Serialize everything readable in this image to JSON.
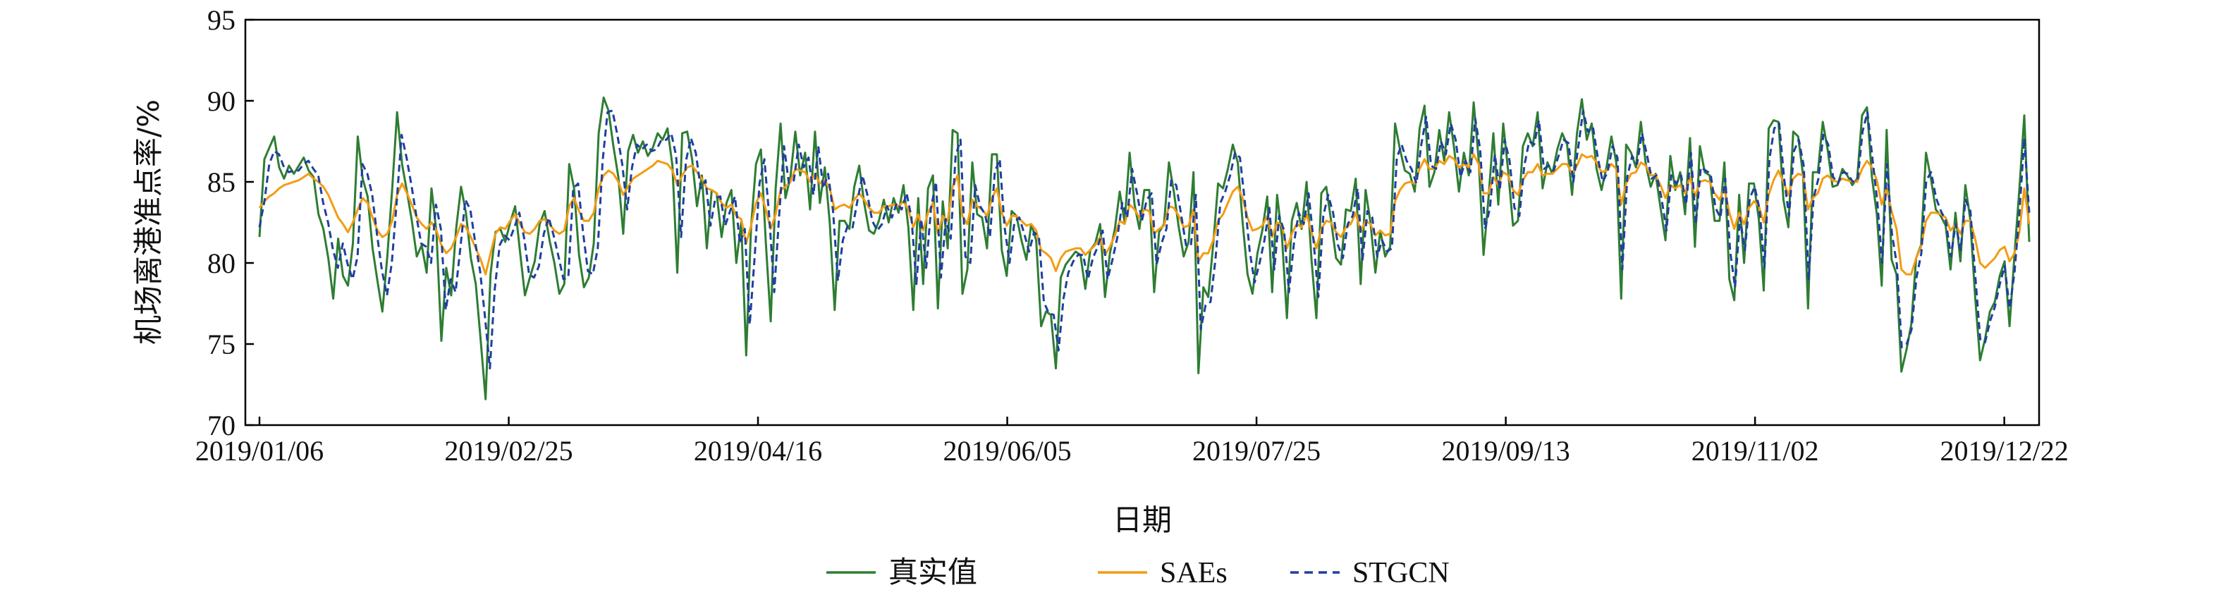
{
  "chart_data": {
    "type": "line",
    "title": "",
    "xlabel": "日期",
    "ylabel": "机场离港准点率/%",
    "ylim": [
      70,
      95
    ],
    "yticks": [
      70,
      75,
      80,
      85,
      90,
      95
    ],
    "x_start": "2019/01/06",
    "x_end": "2019/12/27",
    "xticks": [
      "2019/01/06",
      "2019/02/25",
      "2019/04/16",
      "2019/06/05",
      "2019/07/25",
      "2019/09/13",
      "2019/11/02",
      "2019/12/22"
    ],
    "grid": false,
    "legend_position": "bottom",
    "series": [
      {
        "name": "真实值",
        "color": "#2e7d32",
        "style": "solid",
        "values": [
          81.6,
          86.4,
          87.1,
          87.8,
          85.9,
          85.2,
          86.0,
          85.5,
          86.0,
          86.5,
          85.7,
          85.3,
          83.0,
          82.1,
          80.3,
          77.8,
          81.5,
          79.2,
          78.6,
          81.2,
          87.8,
          85.2,
          84.1,
          80.9,
          78.9,
          77.0,
          80.4,
          84.6,
          89.3,
          86.1,
          84.4,
          82.6,
          80.4,
          81.1,
          79.4,
          84.6,
          81.9,
          75.2,
          79.7,
          78.0,
          82.1,
          84.7,
          83.1,
          80.3,
          78.7,
          75.2,
          71.6,
          79.3,
          81.9,
          82.1,
          81.3,
          82.5,
          83.5,
          80.7,
          78.0,
          79.1,
          80.1,
          82.4,
          83.2,
          81.4,
          80.0,
          78.1,
          78.7,
          86.1,
          84.6,
          80.5,
          78.5,
          79.1,
          81.2,
          88.0,
          90.2,
          89.4,
          87.2,
          85.3,
          81.8,
          86.9,
          87.9,
          86.8,
          87.5,
          86.6,
          87.1,
          88.0,
          87.6,
          88.3,
          86.0,
          79.4,
          88.0,
          88.1,
          86.4,
          83.5,
          85.4,
          80.9,
          84.5,
          84.3,
          81.6,
          83.7,
          84.5,
          80.0,
          82.5,
          74.3,
          82.2,
          86.1,
          87.0,
          81.3,
          76.4,
          84.6,
          88.6,
          84.0,
          85.3,
          88.1,
          85.4,
          86.8,
          83.3,
          88.1,
          83.7,
          85.9,
          82.5,
          77.1,
          82.6,
          82.6,
          82.1,
          84.7,
          86.0,
          83.7,
          82.0,
          81.8,
          82.6,
          83.9,
          82.5,
          84.0,
          83.1,
          84.8,
          82.2,
          77.1,
          84.0,
          78.7,
          84.6,
          85.4,
          77.2,
          83.8,
          80.9,
          88.2,
          88.0,
          78.1,
          79.6,
          86.2,
          83.0,
          82.8,
          80.9,
          86.7,
          86.7,
          80.8,
          79.2,
          83.2,
          82.9,
          81.4,
          80.2,
          82.4,
          81.4,
          76.1,
          77.0,
          76.8,
          73.5,
          79.1,
          79.9,
          80.3,
          80.7,
          80.5,
          78.4,
          80.8,
          81.2,
          82.4,
          77.9,
          80.6,
          82.1,
          84.4,
          82.5,
          86.8,
          83.6,
          82.1,
          84.5,
          84.5,
          78.2,
          81.9,
          82.4,
          86.2,
          84.4,
          82.2,
          80.4,
          81.3,
          85.6,
          73.2,
          78.5,
          77.9,
          81.1,
          84.9,
          84.6,
          85.8,
          87.3,
          86.2,
          82.5,
          79.3,
          78.1,
          80.6,
          82.0,
          84.1,
          78.2,
          84.2,
          81.6,
          76.6,
          82.6,
          83.7,
          82.1,
          85.0,
          80.2,
          76.6,
          84.3,
          84.7,
          82.6,
          80.3,
          79.9,
          83.3,
          83.2,
          85.2,
          78.7,
          84.5,
          82.5,
          79.4,
          82.0,
          80.4,
          81.0,
          88.6,
          87.0,
          85.7,
          85.5,
          84.4,
          88.3,
          89.7,
          84.7,
          85.6,
          88.2,
          86.3,
          89.3,
          87.1,
          84.4,
          86.8,
          85.4,
          89.9,
          86.4,
          80.5,
          84.0,
          88.0,
          83.6,
          88.6,
          85.7,
          82.3,
          82.6,
          87.2,
          88.0,
          87.2,
          89.3,
          84.6,
          86.2,
          85.5,
          87.0,
          88.0,
          87.3,
          84.2,
          88.0,
          90.1,
          87.6,
          88.6,
          85.8,
          84.5,
          85.9,
          87.8,
          86.2,
          77.8,
          87.3,
          86.8,
          85.9,
          88.7,
          86.1,
          84.7,
          85.5,
          83.4,
          81.4,
          86.6,
          84.5,
          85.6,
          83.0,
          87.7,
          81.0,
          87.2,
          85.6,
          85.4,
          82.6,
          82.6,
          86.2,
          79.0,
          77.7,
          84.2,
          80.0,
          84.9,
          84.9,
          82.7,
          78.3,
          88.3,
          88.8,
          88.7,
          83.9,
          82.2,
          88.1,
          87.8,
          85.4,
          77.2,
          85.6,
          85.6,
          88.7,
          87.0,
          84.7,
          84.8,
          85.8,
          85.4,
          84.8,
          85.2,
          89.1,
          89.6,
          85.3,
          83.0,
          78.6,
          88.2,
          80.2,
          79.3,
          73.3,
          74.6,
          76.2,
          80.3,
          81.1,
          86.8,
          85.2,
          83.3,
          82.9,
          82.3,
          79.6,
          83.1,
          80.1,
          84.8,
          82.7,
          77.9,
          74.0,
          75.3,
          77.0,
          77.6,
          79.2,
          80.1,
          76.1,
          80.5,
          84.6,
          89.1,
          81.3
        ]
      },
      {
        "name": "SAEs",
        "color": "#f39c12",
        "style": "solid",
        "values": [
          83.4,
          83.8,
          84.1,
          84.3,
          84.6,
          84.8,
          84.9,
          85.0,
          85.1,
          85.3,
          85.5,
          85.2,
          85.0,
          84.7,
          84.2,
          83.5,
          82.8,
          82.4,
          81.9,
          82.5,
          83.3,
          84.0,
          83.7,
          82.8,
          82.0,
          81.6,
          81.8,
          82.6,
          84.2,
          84.9,
          84.3,
          83.6,
          82.8,
          82.4,
          82.1,
          82.5,
          82.0,
          81.1,
          80.6,
          80.9,
          81.6,
          82.4,
          82.2,
          81.6,
          80.9,
          80.2,
          79.3,
          80.6,
          81.8,
          82.2,
          82.1,
          82.6,
          83.0,
          82.4,
          81.9,
          81.8,
          82.1,
          82.6,
          82.7,
          82.4,
          82.0,
          81.8,
          82.0,
          83.5,
          84.0,
          83.2,
          82.6,
          82.6,
          83.1,
          84.6,
          85.4,
          85.7,
          85.5,
          85.0,
          84.2,
          84.7,
          85.2,
          85.4,
          85.6,
          85.8,
          86.0,
          86.3,
          86.2,
          86.1,
          85.7,
          84.8,
          85.4,
          85.9,
          86.0,
          85.6,
          85.2,
          84.6,
          84.5,
          84.3,
          83.7,
          83.4,
          83.6,
          82.9,
          82.7,
          81.2,
          82.3,
          83.7,
          84.3,
          83.3,
          82.1,
          83.0,
          84.5,
          84.7,
          85.0,
          85.8,
          85.7,
          85.6,
          85.0,
          85.5,
          84.9,
          85.1,
          84.6,
          83.3,
          83.5,
          83.6,
          83.4,
          83.9,
          84.3,
          83.9,
          83.4,
          83.1,
          83.1,
          83.5,
          83.5,
          83.6,
          83.5,
          83.8,
          83.3,
          82.2,
          83.0,
          82.0,
          83.1,
          83.7,
          81.8,
          82.9,
          82.6,
          84.7,
          85.4,
          82.9,
          82.4,
          83.9,
          83.5,
          83.3,
          82.9,
          84.0,
          84.6,
          83.1,
          82.3,
          82.9,
          82.9,
          82.6,
          82.3,
          82.4,
          82.0,
          80.8,
          80.6,
          80.3,
          79.5,
          80.3,
          80.7,
          80.8,
          80.9,
          80.9,
          80.5,
          80.8,
          81.1,
          81.6,
          80.5,
          81.0,
          81.7,
          82.6,
          82.4,
          83.6,
          83.3,
          82.8,
          83.3,
          83.2,
          81.8,
          82.1,
          82.3,
          83.5,
          83.4,
          82.9,
          82.2,
          82.3,
          83.3,
          80.1,
          80.6,
          80.6,
          81.4,
          82.6,
          83.0,
          83.7,
          84.4,
          84.7,
          84.0,
          82.8,
          82.0,
          82.1,
          82.3,
          82.9,
          81.6,
          82.5,
          82.3,
          80.9,
          81.8,
          82.4,
          82.2,
          83.0,
          81.9,
          80.9,
          82.1,
          82.6,
          82.5,
          81.9,
          81.6,
          82.2,
          82.4,
          83.1,
          81.9,
          82.6,
          82.4,
          81.7,
          82.0,
          81.7,
          81.8,
          83.8,
          84.5,
          84.9,
          85.0,
          84.9,
          85.8,
          86.4,
          85.8,
          85.8,
          86.3,
          86.1,
          86.6,
          86.4,
          85.9,
          86.1,
          85.9,
          86.7,
          86.1,
          84.3,
          84.3,
          85.3,
          84.8,
          85.6,
          85.4,
          84.5,
          84.2,
          85.1,
          85.6,
          85.6,
          86.1,
          85.4,
          85.5,
          85.5,
          85.8,
          86.1,
          86.1,
          85.5,
          86.0,
          86.7,
          86.5,
          86.6,
          86.2,
          85.6,
          85.7,
          86.1,
          85.8,
          83.6,
          84.9,
          85.5,
          85.6,
          86.2,
          86.0,
          85.4,
          85.4,
          84.8,
          84.0,
          84.8,
          84.6,
          84.8,
          84.3,
          85.3,
          84.1,
          85.0,
          85.1,
          85.0,
          84.3,
          83.9,
          84.6,
          83.1,
          82.1,
          83.1,
          82.4,
          83.4,
          83.8,
          83.5,
          82.5,
          84.2,
          85.1,
          85.7,
          85.0,
          84.2,
          85.2,
          85.5,
          85.4,
          83.3,
          84.0,
          84.3,
          85.2,
          85.4,
          85.1,
          85.0,
          85.2,
          85.1,
          85.0,
          85.0,
          85.8,
          86.3,
          85.9,
          85.1,
          83.6,
          84.6,
          83.2,
          82.1,
          79.6,
          79.3,
          79.3,
          80.3,
          81.0,
          82.6,
          83.1,
          83.1,
          83.0,
          82.8,
          82.0,
          82.4,
          81.8,
          82.6,
          82.6,
          81.5,
          80.0,
          79.7,
          80.0,
          80.3,
          80.8,
          81.0,
          80.1,
          80.6,
          81.9,
          84.6,
          82.4
        ]
      },
      {
        "name": "STGCN",
        "color": "#1f3f9f",
        "style": "dashed",
        "values": [
          82.2,
          83.8,
          86.1,
          86.9,
          86.7,
          85.9,
          85.6,
          85.7,
          85.7,
          86.1,
          86.3,
          85.8,
          85.4,
          83.7,
          82.5,
          80.8,
          79.7,
          81.2,
          79.9,
          79.0,
          80.4,
          86.1,
          85.5,
          84.2,
          81.7,
          79.5,
          78.0,
          80.0,
          83.8,
          87.9,
          86.5,
          84.8,
          82.9,
          81.2,
          81.0,
          80.0,
          83.6,
          82.1,
          77.1,
          79.0,
          78.2,
          81.0,
          83.9,
          83.3,
          81.3,
          79.5,
          76.7,
          73.5,
          78.4,
          81.1,
          81.7,
          81.4,
          82.2,
          83.1,
          81.5,
          79.3,
          79.1,
          79.8,
          81.8,
          82.8,
          81.7,
          80.4,
          79.0,
          79.1,
          84.6,
          84.9,
          81.9,
          79.5,
          79.3,
          80.9,
          86.3,
          89.3,
          89.4,
          87.9,
          86.1,
          83.3,
          85.9,
          87.3,
          87.0,
          87.3,
          86.9,
          87.0,
          87.6,
          87.6,
          88.0,
          86.6,
          81.6,
          86.3,
          87.7,
          86.8,
          84.6,
          85.1,
          82.3,
          84.0,
          84.1,
          82.3,
          83.2,
          84.1,
          81.2,
          82.1,
          76.2,
          80.3,
          84.9,
          86.4,
          82.8,
          78.2,
          82.9,
          87.2,
          84.9,
          85.1,
          87.3,
          85.9,
          86.5,
          84.2,
          87.2,
          84.6,
          85.5,
          83.2,
          78.9,
          81.4,
          82.3,
          82.2,
          83.9,
          85.4,
          84.2,
          82.6,
          82.0,
          82.4,
          83.5,
          82.8,
          83.7,
          83.3,
          84.3,
          82.8,
          78.7,
          82.7,
          79.7,
          83.4,
          85.0,
          79.1,
          82.7,
          81.5,
          86.6,
          87.6,
          80.4,
          80.0,
          84.8,
          83.5,
          83.0,
          81.6,
          85.6,
          86.4,
          82.2,
          80.0,
          82.5,
          82.8,
          81.8,
          80.7,
          81.9,
          81.6,
          77.6,
          76.9,
          76.8,
          74.6,
          77.8,
          79.4,
          80.1,
          80.5,
          80.5,
          79.0,
          80.3,
          81.0,
          82.0,
          79.0,
          80.2,
          81.6,
          83.7,
          82.8,
          85.8,
          84.3,
          82.6,
          83.9,
          84.3,
          79.9,
          81.2,
          82.1,
          85.1,
          84.8,
          83.0,
          81.1,
          81.1,
          84.2,
          75.9,
          77.4,
          77.6,
          80.2,
          83.7,
          84.4,
          85.4,
          86.8,
          86.5,
          83.8,
          80.7,
          78.8,
          80.0,
          81.4,
          83.4,
          79.6,
          82.9,
          82.0,
          78.2,
          81.2,
          83.1,
          82.4,
          84.3,
          81.4,
          77.9,
          82.9,
          84.2,
          83.1,
          81.1,
          80.3,
          82.4,
          82.9,
          84.6,
          80.2,
          83.2,
          82.8,
          80.4,
          81.4,
          80.7,
          80.9,
          86.5,
          87.3,
          86.3,
          85.8,
          84.9,
          87.3,
          89.0,
          86.0,
          85.8,
          87.5,
          86.7,
          88.6,
          87.6,
          85.3,
          86.3,
          85.6,
          88.9,
          87.0,
          82.1,
          83.4,
          86.7,
          84.5,
          87.6,
          86.3,
          83.4,
          82.9,
          86.0,
          87.5,
          87.3,
          88.8,
          85.8,
          86.0,
          85.7,
          86.6,
          87.6,
          87.4,
          85.0,
          87.1,
          89.4,
          88.1,
          88.4,
          86.5,
          85.0,
          85.6,
          87.2,
          86.5,
          79.6,
          85.3,
          86.6,
          86.1,
          88.0,
          86.7,
          85.2,
          85.4,
          84.0,
          82.0,
          85.4,
          84.9,
          85.4,
          83.6,
          86.8,
          82.4,
          85.9,
          85.7,
          85.5,
          83.4,
          82.8,
          85.2,
          80.7,
          78.5,
          82.8,
          80.8,
          84.0,
          84.7,
          83.3,
          79.7,
          86.4,
          88.3,
          88.6,
          85.2,
          82.9,
          86.9,
          87.6,
          86.0,
          79.0,
          84.0,
          85.2,
          87.9,
          87.3,
          85.3,
          84.9,
          85.6,
          85.5,
          85.0,
          85.1,
          88.1,
          89.3,
          86.5,
          83.8,
          80.0,
          86.1,
          81.8,
          79.9,
          74.8,
          75.0,
          75.9,
          79.1,
          80.6,
          85.1,
          85.6,
          84.0,
          83.2,
          82.6,
          80.4,
          82.4,
          80.8,
          83.9,
          83.2,
          79.2,
          75.3,
          75.1,
          76.4,
          77.3,
          78.7,
          79.8,
          77.2,
          79.4,
          83.1,
          87.7,
          83.1
        ]
      }
    ]
  }
}
